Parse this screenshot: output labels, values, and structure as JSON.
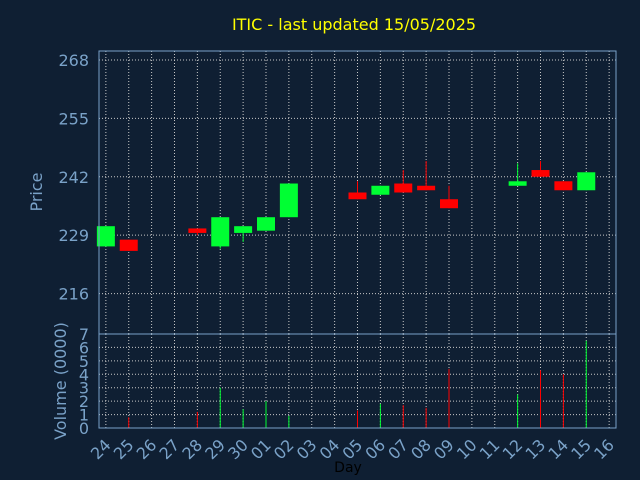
{
  "chart_data": {
    "type": "candlestick",
    "title": "ITIC - last updated 15/05/2025",
    "price_panel": {
      "ylabel": "Price",
      "ylim": [
        207,
        270
      ],
      "yticks": [
        216,
        229,
        242,
        255,
        268
      ]
    },
    "volume_panel": {
      "ylabel": "Volume (0000)",
      "ylim": [
        0,
        7
      ],
      "yticks": [
        0,
        1,
        2,
        3,
        4,
        5,
        6,
        7
      ]
    },
    "xlabel": "Day",
    "x_ticks": [
      "24",
      "25",
      "26",
      "27",
      "28",
      "29",
      "30",
      "01",
      "02",
      "03",
      "04",
      "05",
      "06",
      "07",
      "08",
      "09",
      "10",
      "11",
      "12",
      "13",
      "14",
      "15",
      "16"
    ],
    "x_tick_positions": [
      0,
      1,
      2,
      3,
      4,
      5,
      6,
      7,
      8,
      9,
      10,
      11,
      12,
      13,
      14,
      15,
      16,
      17,
      18,
      19,
      20,
      21,
      22
    ],
    "x_range": [
      -0.3,
      22.3
    ],
    "grid": true,
    "candles": [
      {
        "x": 0,
        "open": 226.5,
        "close": 231.0,
        "high": 231.0,
        "low": 226.5,
        "volume": 0.0
      },
      {
        "x": 1,
        "open": 228.0,
        "close": 225.5,
        "high": 228.0,
        "low": 225.5,
        "volume": 0.8
      },
      {
        "x": 4,
        "open": 230.5,
        "close": 229.5,
        "high": 230.5,
        "low": 229.0,
        "volume": 1.2
      },
      {
        "x": 5,
        "open": 226.5,
        "close": 233.0,
        "high": 233.0,
        "low": 226.0,
        "volume": 3.0
      },
      {
        "x": 6,
        "open": 229.5,
        "close": 231.0,
        "high": 231.0,
        "low": 227.5,
        "volume": 1.4
      },
      {
        "x": 7,
        "open": 230.0,
        "close": 233.0,
        "high": 233.0,
        "low": 230.0,
        "volume": 2.0
      },
      {
        "x": 8,
        "open": 233.0,
        "close": 240.5,
        "high": 240.5,
        "low": 233.0,
        "volume": 0.9
      },
      {
        "x": 11,
        "open": 238.5,
        "close": 237.0,
        "high": 241.0,
        "low": 237.0,
        "volume": 1.3
      },
      {
        "x": 12,
        "open": 238.0,
        "close": 240.0,
        "high": 240.0,
        "low": 238.0,
        "volume": 1.8
      },
      {
        "x": 13,
        "open": 240.5,
        "close": 238.5,
        "high": 243.5,
        "low": 238.5,
        "volume": 1.7
      },
      {
        "x": 14,
        "open": 240.0,
        "close": 239.0,
        "high": 245.5,
        "low": 239.0,
        "volume": 1.5
      },
      {
        "x": 15,
        "open": 237.0,
        "close": 235.0,
        "high": 240.0,
        "low": 235.0,
        "volume": 4.4
      },
      {
        "x": 18,
        "open": 240.0,
        "close": 241.0,
        "high": 245.0,
        "low": 240.0,
        "volume": 2.5
      },
      {
        "x": 19,
        "open": 243.5,
        "close": 242.0,
        "high": 245.5,
        "low": 242.0,
        "volume": 4.3
      },
      {
        "x": 20,
        "open": 241.0,
        "close": 239.0,
        "high": 241.0,
        "low": 239.0,
        "volume": 4.0
      },
      {
        "x": 21,
        "open": 239.0,
        "close": 243.0,
        "high": 243.0,
        "low": 239.0,
        "volume": 6.5
      }
    ],
    "colors": {
      "background": "#0f1f33",
      "up": "#00ff33",
      "down": "#ff0000",
      "grid": "#c8c8c8",
      "axis_text": "#7aa2c8",
      "title": "#ffff00"
    }
  }
}
